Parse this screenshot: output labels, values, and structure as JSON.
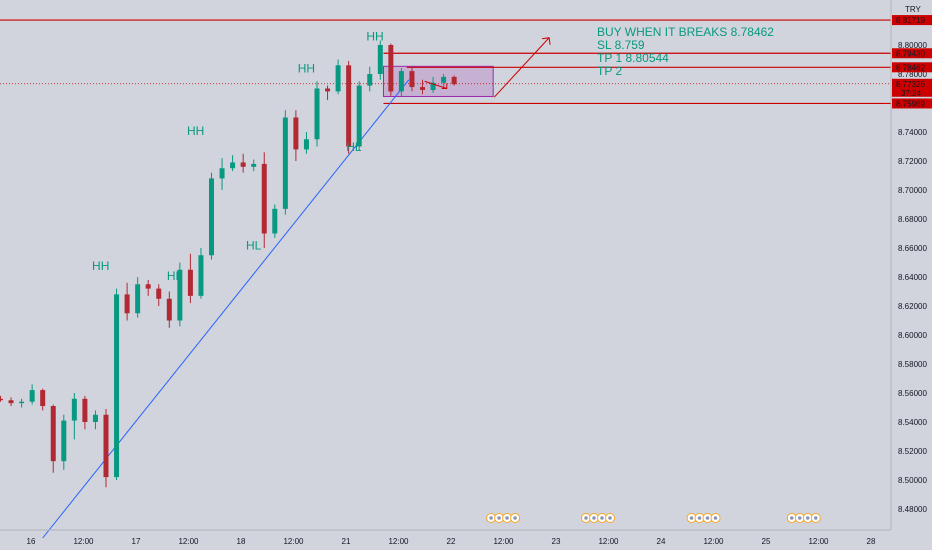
{
  "chart_data": {
    "type": "candlestick",
    "currency": "TRY",
    "ylim": [
      8.465,
      8.825
    ],
    "y_ticks": [
      "8.48000",
      "8.50000",
      "8.52000",
      "8.54000",
      "8.56000",
      "8.58000",
      "8.60000",
      "8.62000",
      "8.64000",
      "8.66000",
      "8.68000",
      "8.70000",
      "8.72000",
      "8.74000",
      "8.76000",
      "8.78000",
      "8.80000"
    ],
    "x_ticks": [
      "16",
      "12:00",
      "17",
      "12:00",
      "18",
      "12:00",
      "21",
      "12:00",
      "22",
      "12:00",
      "23",
      "12:00",
      "24",
      "12:00",
      "25",
      "12:00",
      "28"
    ],
    "price_lines": [
      {
        "value": 8.81719,
        "label": "8.81719",
        "color": "#cc0000"
      },
      {
        "value": 8.7943,
        "label": "8.79430",
        "color": "#cc0000"
      },
      {
        "value": 8.78462,
        "label": "8.78462",
        "color": "#cc0000"
      },
      {
        "value": 8.75969,
        "label": "8.75969",
        "color": "#cc0000"
      }
    ],
    "current_price": {
      "value": 8.77326,
      "label": "8.77326",
      "countdown": "37:24",
      "color": "#cc0000"
    },
    "trade_plan": [
      "BUY WHEN IT BREAKS 8.78462",
      "SL 8.759",
      "TP 1 8.80544",
      "TP 2"
    ],
    "swing_labels": [
      {
        "text": "HH",
        "time": 9.5,
        "price": 8.645
      },
      {
        "text": "HL",
        "time": 16.5,
        "price": 8.638
      },
      {
        "text": "HH",
        "time": 18.5,
        "price": 8.738
      },
      {
        "text": "HL",
        "time": 24.0,
        "price": 8.659
      },
      {
        "text": "HH",
        "time": 29.0,
        "price": 8.781
      },
      {
        "text": "HL",
        "time": 33.5,
        "price": 8.727
      },
      {
        "text": "HH",
        "time": 35.5,
        "price": 8.803
      }
    ],
    "trendline": {
      "from": [
        4.0,
        8.46
      ],
      "to": [
        38.7,
        8.776
      ]
    },
    "zone": {
      "time_from": 36.3,
      "time_to": 46.7,
      "price_from": 8.7645,
      "price_to": 8.7853
    },
    "candles": [
      {
        "o": 8.556,
        "h": 8.558,
        "l": 8.554,
        "c": 8.555
      },
      {
        "o": 8.555,
        "h": 8.557,
        "l": 8.551,
        "c": 8.553
      },
      {
        "o": 8.553,
        "h": 8.556,
        "l": 8.55,
        "c": 8.554
      },
      {
        "o": 8.554,
        "h": 8.566,
        "l": 8.552,
        "c": 8.562
      },
      {
        "o": 8.562,
        "h": 8.563,
        "l": 8.548,
        "c": 8.551
      },
      {
        "o": 8.551,
        "h": 8.552,
        "l": 8.505,
        "c": 8.513
      },
      {
        "o": 8.513,
        "h": 8.545,
        "l": 8.507,
        "c": 8.541
      },
      {
        "o": 8.541,
        "h": 8.56,
        "l": 8.528,
        "c": 8.556
      },
      {
        "o": 8.556,
        "h": 8.558,
        "l": 8.535,
        "c": 8.54
      },
      {
        "o": 8.54,
        "h": 8.548,
        "l": 8.535,
        "c": 8.545
      },
      {
        "o": 8.545,
        "h": 8.549,
        "l": 8.495,
        "c": 8.502
      },
      {
        "o": 8.502,
        "h": 8.632,
        "l": 8.5,
        "c": 8.628
      },
      {
        "o": 8.628,
        "h": 8.636,
        "l": 8.61,
        "c": 8.615
      },
      {
        "o": 8.615,
        "h": 8.64,
        "l": 8.612,
        "c": 8.635
      },
      {
        "o": 8.635,
        "h": 8.638,
        "l": 8.627,
        "c": 8.632
      },
      {
        "o": 8.632,
        "h": 8.635,
        "l": 8.62,
        "c": 8.625
      },
      {
        "o": 8.625,
        "h": 8.63,
        "l": 8.605,
        "c": 8.61
      },
      {
        "o": 8.61,
        "h": 8.65,
        "l": 8.606,
        "c": 8.645
      },
      {
        "o": 8.645,
        "h": 8.656,
        "l": 8.622,
        "c": 8.627
      },
      {
        "o": 8.627,
        "h": 8.66,
        "l": 8.625,
        "c": 8.655
      },
      {
        "o": 8.655,
        "h": 8.712,
        "l": 8.652,
        "c": 8.708
      },
      {
        "o": 8.708,
        "h": 8.722,
        "l": 8.7,
        "c": 8.715
      },
      {
        "o": 8.715,
        "h": 8.724,
        "l": 8.713,
        "c": 8.719
      },
      {
        "o": 8.719,
        "h": 8.725,
        "l": 8.712,
        "c": 8.716
      },
      {
        "o": 8.716,
        "h": 8.721,
        "l": 8.713,
        "c": 8.718
      },
      {
        "o": 8.718,
        "h": 8.726,
        "l": 8.66,
        "c": 8.67
      },
      {
        "o": 8.67,
        "h": 8.69,
        "l": 8.667,
        "c": 8.687
      },
      {
        "o": 8.687,
        "h": 8.755,
        "l": 8.683,
        "c": 8.75
      },
      {
        "o": 8.75,
        "h": 8.755,
        "l": 8.72,
        "c": 8.728
      },
      {
        "o": 8.728,
        "h": 8.74,
        "l": 8.725,
        "c": 8.735
      },
      {
        "o": 8.735,
        "h": 8.775,
        "l": 8.73,
        "c": 8.77
      },
      {
        "o": 8.77,
        "h": 8.772,
        "l": 8.762,
        "c": 8.768
      },
      {
        "o": 8.768,
        "h": 8.79,
        "l": 8.766,
        "c": 8.786
      },
      {
        "o": 8.786,
        "h": 8.789,
        "l": 8.725,
        "c": 8.73
      },
      {
        "o": 8.73,
        "h": 8.775,
        "l": 8.727,
        "c": 8.772
      },
      {
        "o": 8.772,
        "h": 8.785,
        "l": 8.768,
        "c": 8.78
      },
      {
        "o": 8.78,
        "h": 8.803,
        "l": 8.776,
        "c": 8.8
      },
      {
        "o": 8.8,
        "h": 8.801,
        "l": 8.765,
        "c": 8.768
      },
      {
        "o": 8.768,
        "h": 8.784,
        "l": 8.764,
        "c": 8.782
      },
      {
        "o": 8.782,
        "h": 8.785,
        "l": 8.768,
        "c": 8.771
      },
      {
        "o": 8.771,
        "h": 8.776,
        "l": 8.766,
        "c": 8.769
      },
      {
        "o": 8.769,
        "h": 8.778,
        "l": 8.767,
        "c": 8.774
      },
      {
        "o": 8.774,
        "h": 8.78,
        "l": 8.771,
        "c": 8.778
      },
      {
        "o": 8.778,
        "h": 8.779,
        "l": 8.772,
        "c": 8.773
      }
    ]
  },
  "colors": {
    "bull": "#089981",
    "bear": "#b22833",
    "level": "#cc0000",
    "annotation": "#089981",
    "trendline": "#2962ff",
    "zone_fill": "rgba(156,39,176,0.2)",
    "zone_stroke": "#9c27b0"
  },
  "event_markers": {
    "times": [
      46.5,
      55.5,
      65.5,
      75.0
    ]
  }
}
